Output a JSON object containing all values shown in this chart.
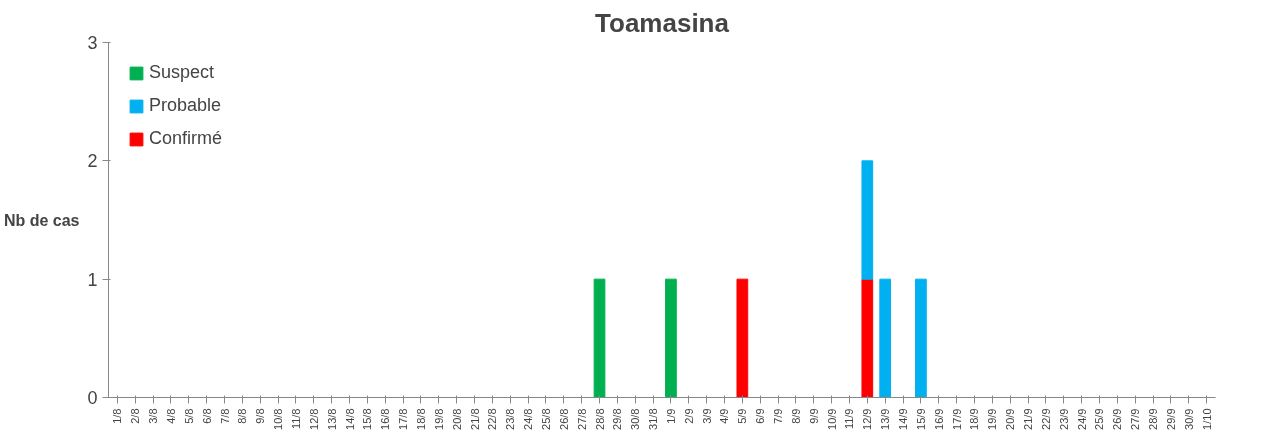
{
  "chart_data": {
    "type": "bar",
    "title": "Toamasina",
    "ylabel": "Nb de cas",
    "stacked": true,
    "legend": "top left",
    "grid": false,
    "ylim": [
      0,
      3
    ],
    "yticks": [
      0,
      1,
      2,
      3
    ],
    "categories": [
      "1/8",
      "2/8",
      "3/8",
      "4/8",
      "5/8",
      "6/8",
      "7/8",
      "8/8",
      "9/8",
      "10/8",
      "11/8",
      "12/8",
      "13/8",
      "14/8",
      "15/8",
      "16/8",
      "17/8",
      "18/8",
      "19/8",
      "20/8",
      "21/8",
      "22/8",
      "23/8",
      "24/8",
      "25/8",
      "26/8",
      "27/8",
      "28/8",
      "29/8",
      "30/8",
      "31/8",
      "1/9",
      "2/9",
      "3/9",
      "4/9",
      "5/9",
      "6/9",
      "7/9",
      "8/9",
      "9/9",
      "10/9",
      "11/9",
      "12/9",
      "13/9",
      "14/9",
      "15/9",
      "16/9",
      "17/9",
      "18/9",
      "19/9",
      "20/9",
      "21/9",
      "22/9",
      "23/9",
      "24/9",
      "25/9",
      "26/9",
      "27/9",
      "28/9",
      "29/9",
      "30/9",
      "1/10"
    ],
    "series": [
      {
        "name": "Confirmé",
        "color": "#ff0000",
        "values": [
          0,
          0,
          0,
          0,
          0,
          0,
          0,
          0,
          0,
          0,
          0,
          0,
          0,
          0,
          0,
          0,
          0,
          0,
          0,
          0,
          0,
          0,
          0,
          0,
          0,
          0,
          0,
          0,
          0,
          0,
          0,
          0,
          0,
          0,
          0,
          1,
          0,
          0,
          0,
          0,
          0,
          0,
          1,
          0,
          0,
          0,
          0,
          0,
          0,
          0,
          0,
          0,
          0,
          0,
          0,
          0,
          0,
          0,
          0,
          0,
          0,
          0
        ]
      },
      {
        "name": "Probable",
        "color": "#00b0f0",
        "values": [
          0,
          0,
          0,
          0,
          0,
          0,
          0,
          0,
          0,
          0,
          0,
          0,
          0,
          0,
          0,
          0,
          0,
          0,
          0,
          0,
          0,
          0,
          0,
          0,
          0,
          0,
          0,
          0,
          0,
          0,
          0,
          0,
          0,
          0,
          0,
          0,
          0,
          0,
          0,
          0,
          0,
          0,
          1,
          1,
          0,
          1,
          0,
          0,
          0,
          0,
          0,
          0,
          0,
          0,
          0,
          0,
          0,
          0,
          0,
          0,
          0,
          0
        ]
      },
      {
        "name": "Suspect",
        "color": "#00b050",
        "values": [
          0,
          0,
          0,
          0,
          0,
          0,
          0,
          0,
          0,
          0,
          0,
          0,
          0,
          0,
          0,
          0,
          0,
          0,
          0,
          0,
          0,
          0,
          0,
          0,
          0,
          0,
          0,
          1,
          0,
          0,
          0,
          1,
          0,
          0,
          0,
          0,
          0,
          0,
          0,
          0,
          0,
          0,
          0,
          0,
          0,
          0,
          0,
          0,
          0,
          0,
          0,
          0,
          0,
          0,
          0,
          0,
          0,
          0,
          0,
          0,
          0,
          0
        ]
      }
    ]
  }
}
